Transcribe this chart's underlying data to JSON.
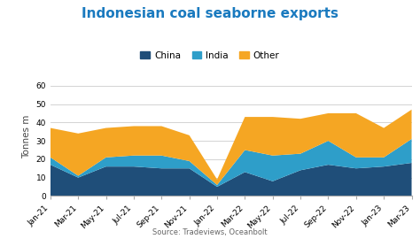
{
  "title": "Indonesian coal seaborne exports",
  "ylabel": "Tonnes m",
  "source": "Source: Tradeviews, Oceanbolt",
  "x_labels": [
    "Jan-21",
    "Mar-21",
    "May-21",
    "Jul-21",
    "Sep-21",
    "Nov-21",
    "Jan-22",
    "Mar-22",
    "May-22",
    "Jul-22",
    "Sep-22",
    "Nov-22",
    "Jan-23",
    "Mar-23"
  ],
  "china": [
    17,
    10,
    16,
    16,
    15,
    15,
    5,
    13,
    8,
    14,
    17,
    15,
    16,
    18
  ],
  "india": [
    4,
    1,
    5,
    6,
    7,
    4,
    1,
    12,
    14,
    9,
    13,
    6,
    5,
    13
  ],
  "other": [
    16,
    23,
    16,
    16,
    16,
    14,
    3,
    18,
    21,
    19,
    15,
    24,
    16,
    16
  ],
  "color_china": "#1f4e79",
  "color_india": "#2e9ec9",
  "color_other": "#f5a623",
  "ylim": [
    0,
    65
  ],
  "yticks": [
    0,
    10,
    20,
    30,
    40,
    50,
    60
  ],
  "background_color": "#ffffff",
  "grid_color": "#cccccc",
  "title_color": "#1a7abf",
  "title_fontsize": 11,
  "label_fontsize": 7.5,
  "tick_fontsize": 6.5,
  "source_fontsize": 6,
  "legend_fontsize": 7.5
}
